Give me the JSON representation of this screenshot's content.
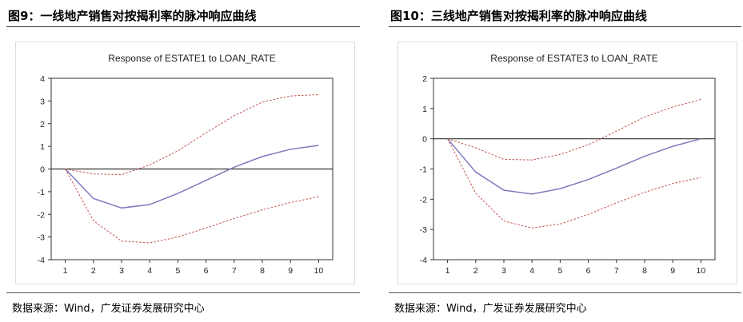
{
  "figures": [
    {
      "figure_title": "图9：一线地产销售对按揭利率的脉冲响应曲线",
      "source": "数据来源：Wind，广发证券发展研究中心"
    },
    {
      "figure_title": "图10：三线地产销售对按揭利率的脉冲响应曲线",
      "source": "数据来源：Wind，广发证券发展研究中心"
    }
  ],
  "colors": {
    "response_line": "#7b7bbf",
    "band_line": "#c0504d",
    "zero_line": "#333333",
    "axis": "#333333"
  },
  "chart_data": [
    {
      "type": "line",
      "title": "Response of ESTATE1 to LOAN_RATE",
      "xlabel": "",
      "ylabel": "",
      "categories": [
        "1",
        "2",
        "3",
        "4",
        "5",
        "6",
        "7",
        "8",
        "9",
        "10"
      ],
      "x": [
        1,
        2,
        3,
        4,
        5,
        6,
        7,
        8,
        9,
        10
      ],
      "xlim": [
        0.5,
        10.5
      ],
      "ylim": [
        -4,
        4
      ],
      "yticks": [
        4,
        3,
        2,
        1,
        0,
        -1,
        -2,
        -3,
        -4
      ],
      "series": [
        {
          "name": "response",
          "style": "solid",
          "values": [
            0,
            -1.3,
            -1.72,
            -1.57,
            -1.08,
            -0.5,
            0.08,
            0.55,
            0.87,
            1.04
          ]
        },
        {
          "name": "upper band",
          "style": "dashed",
          "values": [
            0,
            -0.22,
            -0.25,
            0.18,
            0.8,
            1.6,
            2.35,
            2.95,
            3.22,
            3.28
          ]
        },
        {
          "name": "lower band",
          "style": "dashed",
          "values": [
            0,
            -2.28,
            -3.18,
            -3.26,
            -3.0,
            -2.6,
            -2.18,
            -1.8,
            -1.48,
            -1.22
          ]
        }
      ]
    },
    {
      "type": "line",
      "title": "Response of ESTATE3 to LOAN_RATE",
      "xlabel": "",
      "ylabel": "",
      "categories": [
        "1",
        "2",
        "3",
        "4",
        "5",
        "6",
        "7",
        "8",
        "9",
        "10"
      ],
      "x": [
        1,
        2,
        3,
        4,
        5,
        6,
        7,
        8,
        9,
        10
      ],
      "xlim": [
        0.5,
        10.5
      ],
      "ylim": [
        -4,
        2
      ],
      "yticks": [
        2,
        1,
        0,
        -1,
        -2,
        -3,
        -4
      ],
      "series": [
        {
          "name": "response",
          "style": "solid",
          "values": [
            0,
            -1.1,
            -1.7,
            -1.83,
            -1.65,
            -1.35,
            -0.97,
            -0.58,
            -0.25,
            0
          ]
        },
        {
          "name": "upper band",
          "style": "dashed",
          "values": [
            0,
            -0.3,
            -0.68,
            -0.7,
            -0.52,
            -0.2,
            0.25,
            0.72,
            1.05,
            1.3
          ]
        },
        {
          "name": "lower band",
          "style": "dashed",
          "values": [
            0,
            -1.8,
            -2.72,
            -2.95,
            -2.82,
            -2.5,
            -2.12,
            -1.77,
            -1.48,
            -1.28
          ]
        }
      ]
    }
  ]
}
